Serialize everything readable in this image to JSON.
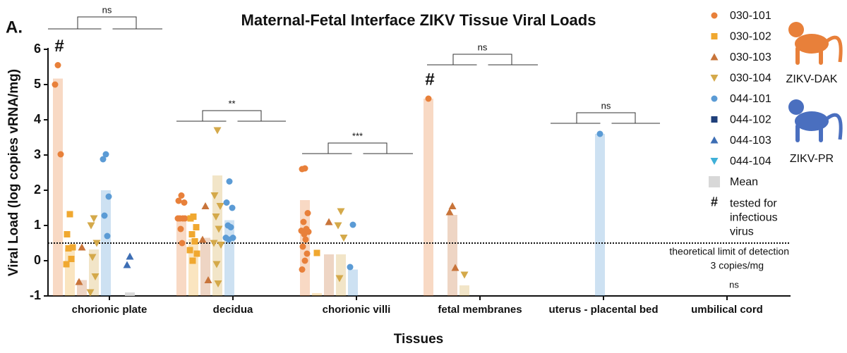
{
  "chart_data": {
    "type": "strip",
    "panel_label": "A.",
    "title": "Maternal-Fetal Interface ZIKV Tissue Viral Loads",
    "x_label": "Tissues",
    "y_label": "Viral Load (log copies vRNA/mg)",
    "categories": [
      "chorionic plate",
      "decidua",
      "chorionic villi",
      "fetal membranes",
      "uterus - placental bed",
      "umbilical cord"
    ],
    "ylim": [
      -1,
      6
    ],
    "yticks": [
      -1,
      0,
      1,
      2,
      3,
      4,
      5,
      6
    ],
    "series": [
      {
        "name": "030-101",
        "color": "#e8803a",
        "marker": "circle",
        "values": [
          [
            5.55,
            5.0,
            3.02
          ],
          [
            1.85,
            1.7,
            1.65,
            1.2,
            1.2,
            1.2,
            1.2,
            0.9,
            0.5
          ],
          [
            2.62,
            2.6,
            1.35,
            1.1,
            0.9,
            0.85,
            0.82,
            0.75,
            0.6,
            0.4,
            0.2,
            0.0,
            -0.25
          ],
          [
            4.6
          ],
          [],
          []
        ],
        "means": [
          5.17,
          1.22,
          1.72,
          4.6,
          null,
          null
        ]
      },
      {
        "name": "030-102",
        "color": "#f0a830",
        "marker": "square",
        "values": [
          [
            1.32,
            0.75,
            0.38,
            0.35,
            0.05,
            -0.1
          ],
          [
            1.25,
            1.2,
            0.95,
            0.75,
            0.55,
            0.3,
            0.2,
            0.0
          ],
          [
            0.22
          ],
          [],
          [],
          []
        ],
        "means": [
          0.35,
          0.62,
          -0.92,
          null,
          null,
          null
        ]
      },
      {
        "name": "030-103",
        "color": "#c8743a",
        "marker": "triangle-up",
        "values": [
          [
            0.38,
            -0.6
          ],
          [
            1.55,
            0.6,
            -0.55
          ],
          [
            1.1
          ],
          [
            1.55,
            1.38,
            -0.2
          ],
          [],
          []
        ],
        "means": [
          -0.55,
          0.65,
          0.18,
          1.3,
          null,
          null
        ]
      },
      {
        "name": "030-104",
        "color": "#d4a94a",
        "marker": "triangle-down",
        "values": [
          [
            1.2,
            1.0,
            0.5,
            0.1,
            -0.45,
            -0.9
          ],
          [
            3.7,
            1.85,
            1.55,
            1.25,
            0.9,
            0.5,
            0.45,
            -0.1,
            -0.65
          ],
          [
            1.4,
            1.0,
            0.65,
            -0.5
          ],
          [
            -0.4
          ],
          [],
          []
        ],
        "means": [
          0.32,
          2.42,
          0.18,
          -0.7,
          null,
          null
        ]
      },
      {
        "name": "044-101",
        "color": "#5b9bd5",
        "marker": "circle",
        "values": [
          [
            3.02,
            2.88,
            1.82,
            1.28,
            0.7
          ],
          [
            2.25,
            1.65,
            1.5,
            1.0,
            0.95,
            0.65,
            0.65,
            0.6
          ],
          [
            1.02,
            -0.18
          ],
          [],
          [
            3.6
          ],
          []
        ],
        "means": [
          2.0,
          1.15,
          -0.25,
          null,
          3.6,
          null
        ]
      },
      {
        "name": "044-102",
        "color": "#1f3f7a",
        "marker": "square",
        "values": [
          [],
          [],
          [],
          [],
          [],
          []
        ],
        "means": [
          null,
          null,
          null,
          null,
          null,
          null
        ]
      },
      {
        "name": "044-103",
        "color": "#3d6eb4",
        "marker": "triangle-up",
        "values": [
          [
            0.12,
            -0.12
          ],
          [],
          [],
          [],
          [],
          []
        ],
        "means": [
          -0.9,
          null,
          null,
          null,
          null,
          null
        ]
      },
      {
        "name": "044-104",
        "color": "#3fb0d8",
        "marker": "triangle-down",
        "values": [
          [],
          [],
          [],
          [],
          [],
          []
        ],
        "means": [
          null,
          null,
          null,
          null,
          null,
          null
        ]
      }
    ],
    "mean_label": "Mean",
    "mean_color": "#d8d8d8",
    "hash_symbol": "#",
    "hash_color": "#3a9a6a",
    "hash_label": [
      "tested for",
      "infectious",
      "virus"
    ],
    "tested_for_infectious_virus": [
      true,
      false,
      false,
      true,
      false,
      false
    ],
    "significance": [
      "ns",
      "**",
      "***",
      "ns",
      "ns",
      "ns"
    ],
    "detection_limit": 0.5,
    "detection_limit_label": [
      "theoretical limit of detection",
      "3 copies/mg"
    ],
    "strain_labels": [
      {
        "text": "ZIKV-DAK",
        "color": "#e8803a"
      },
      {
        "text": "ZIKV-PR",
        "color": "#4a6fbf"
      }
    ]
  }
}
